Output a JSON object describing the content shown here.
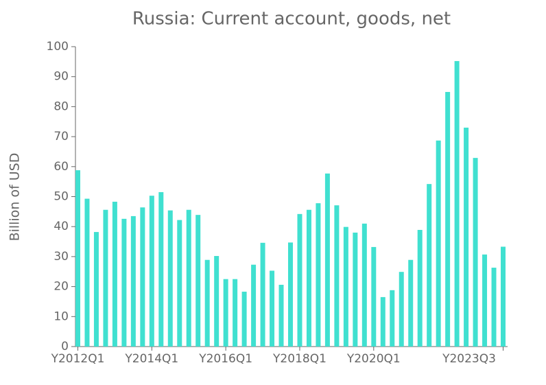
{
  "chart_data": {
    "type": "bar",
    "title": "Russia: Current account, goods, net",
    "y_label": "Billion of USD",
    "categories": [
      "Y2012Q1",
      null,
      null,
      null,
      null,
      null,
      null,
      null,
      "Y2014Q1",
      null,
      null,
      null,
      null,
      null,
      null,
      null,
      "Y2016Q1",
      null,
      null,
      null,
      null,
      null,
      null,
      null,
      "Y2018Q1",
      null,
      null,
      null,
      null,
      null,
      null,
      null,
      "Y2020Q1",
      null,
      null,
      null,
      null,
      null,
      null,
      null,
      null,
      null,
      null,
      null,
      null,
      null,
      "Y2023Q3"
    ],
    "values": [
      58.8,
      49.3,
      38.2,
      45.6,
      48.3,
      42.6,
      43.5,
      46.4,
      50.3,
      51.5,
      45.4,
      42.2,
      45.6,
      43.9,
      28.9,
      30.2,
      22.5,
      22.5,
      18.3,
      27.3,
      34.6,
      25.3,
      20.6,
      34.7,
      44.2,
      45.6,
      47.8,
      57.7,
      47.1,
      39.9,
      38.0,
      41.0,
      33.2,
      16.5,
      18.8,
      24.9,
      28.9,
      38.9,
      54.2,
      68.7,
      84.9,
      95.2,
      73.0,
      62.9,
      30.7,
      26.3,
      33.3
    ],
    "color": "#40e0d0",
    "ylim": [
      0,
      100
    ],
    "yticks": [
      0,
      10,
      20,
      30,
      40,
      50,
      60,
      70,
      80,
      90,
      100
    ],
    "grid": false
  }
}
